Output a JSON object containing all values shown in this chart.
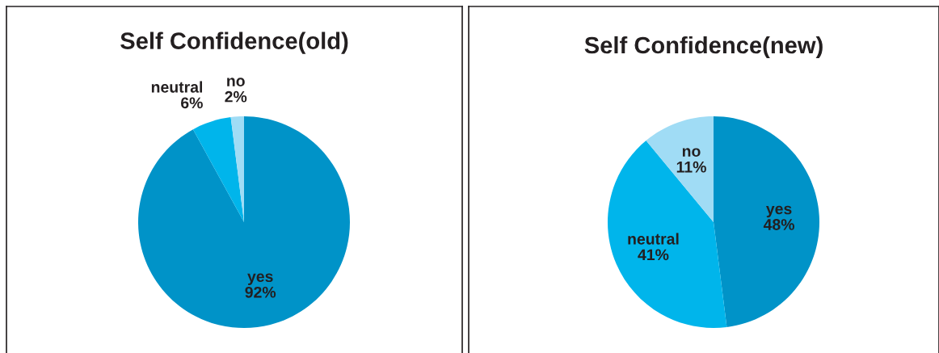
{
  "chart_data": [
    {
      "type": "pie",
      "title": "Self Confidence(old)",
      "categories": [
        "yes",
        "neutral",
        "no"
      ],
      "values": [
        92,
        6,
        2
      ],
      "colors": [
        "#0093c8",
        "#00b5eb",
        "#a0dcf5"
      ],
      "value_labels": [
        "92%",
        "6%",
        "2%"
      ]
    },
    {
      "type": "pie",
      "title": "Self Confidence(new)",
      "categories": [
        "yes",
        "neutral",
        "no"
      ],
      "values": [
        48,
        41,
        11
      ],
      "colors": [
        "#0093c8",
        "#00b5eb",
        "#a0dcf5"
      ],
      "value_labels": [
        "48%",
        "41%",
        "11%"
      ]
    }
  ]
}
